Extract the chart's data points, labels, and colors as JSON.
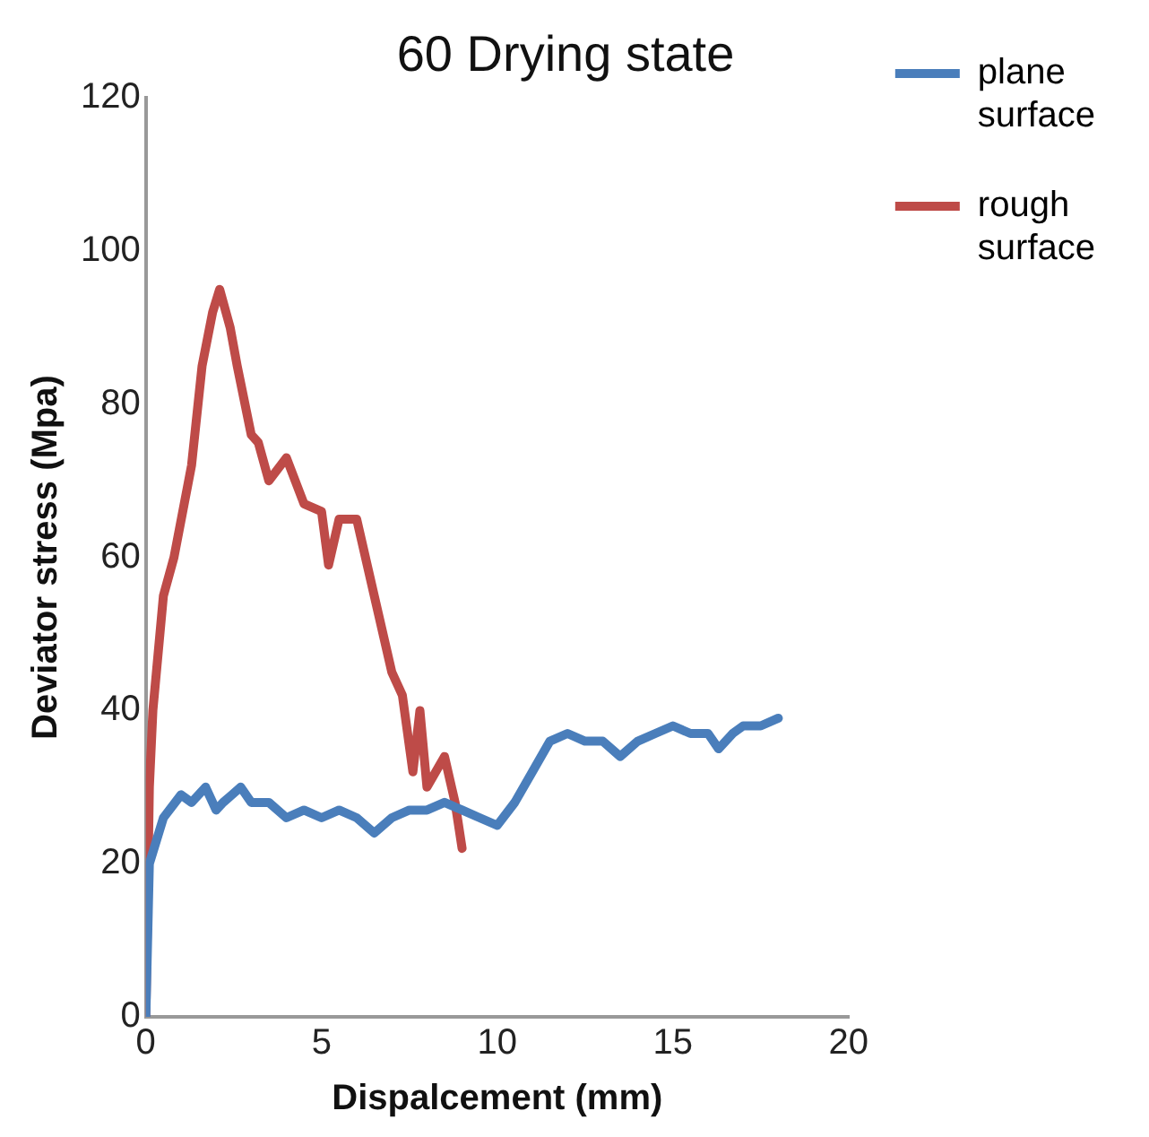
{
  "chart_data": {
    "type": "line",
    "title": "60 Drying state",
    "xlabel": "Dispalcement (mm)",
    "ylabel": "Deviator stress (Mpa)",
    "xlim": [
      0,
      20
    ],
    "xticks": [
      0,
      5,
      10,
      15,
      20
    ],
    "ylim": [
      0,
      120
    ],
    "yticks": [
      0,
      20,
      40,
      60,
      80,
      100,
      120
    ],
    "legend": "right",
    "grid": false,
    "marker": "none",
    "series": [
      {
        "name": "plane surface",
        "color": "#4a7ebb",
        "x": [
          0,
          0.1,
          0.5,
          1,
          1.3,
          1.7,
          2,
          2.2,
          2.7,
          3,
          3.5,
          4,
          4.5,
          5,
          5.5,
          6,
          6.5,
          7,
          7.5,
          8,
          8.5,
          9,
          9.5,
          10,
          10.5,
          11,
          11.5,
          12,
          12.5,
          13,
          13.5,
          14,
          14.5,
          15,
          15.5,
          16,
          16.3,
          16.7,
          17,
          17.5,
          18
        ],
        "values": [
          0,
          20,
          26,
          29,
          28,
          30,
          27,
          28,
          30,
          28,
          28,
          26,
          27,
          26,
          27,
          26,
          24,
          26,
          27,
          27,
          28,
          27,
          26,
          25,
          28,
          32,
          36,
          37,
          36,
          36,
          34,
          36,
          37,
          38,
          37,
          37,
          35,
          37,
          38,
          38,
          39
        ]
      },
      {
        "name": "rough surface",
        "color": "#be4b48",
        "x": [
          0,
          0.1,
          0.2,
          0.5,
          0.8,
          1.3,
          1.6,
          1.9,
          2.1,
          2.4,
          2.6,
          3,
          3.2,
          3.5,
          4,
          4.5,
          5,
          5.2,
          5.5,
          6,
          6.5,
          7,
          7.3,
          7.6,
          7.8,
          8,
          8.5,
          8.8,
          9
        ],
        "values": [
          0,
          30,
          40,
          55,
          60,
          72,
          85,
          92,
          95,
          90,
          85,
          76,
          75,
          70,
          73,
          67,
          66,
          59,
          65,
          65,
          55,
          45,
          42,
          32,
          40,
          30,
          34,
          28,
          22
        ]
      }
    ]
  }
}
